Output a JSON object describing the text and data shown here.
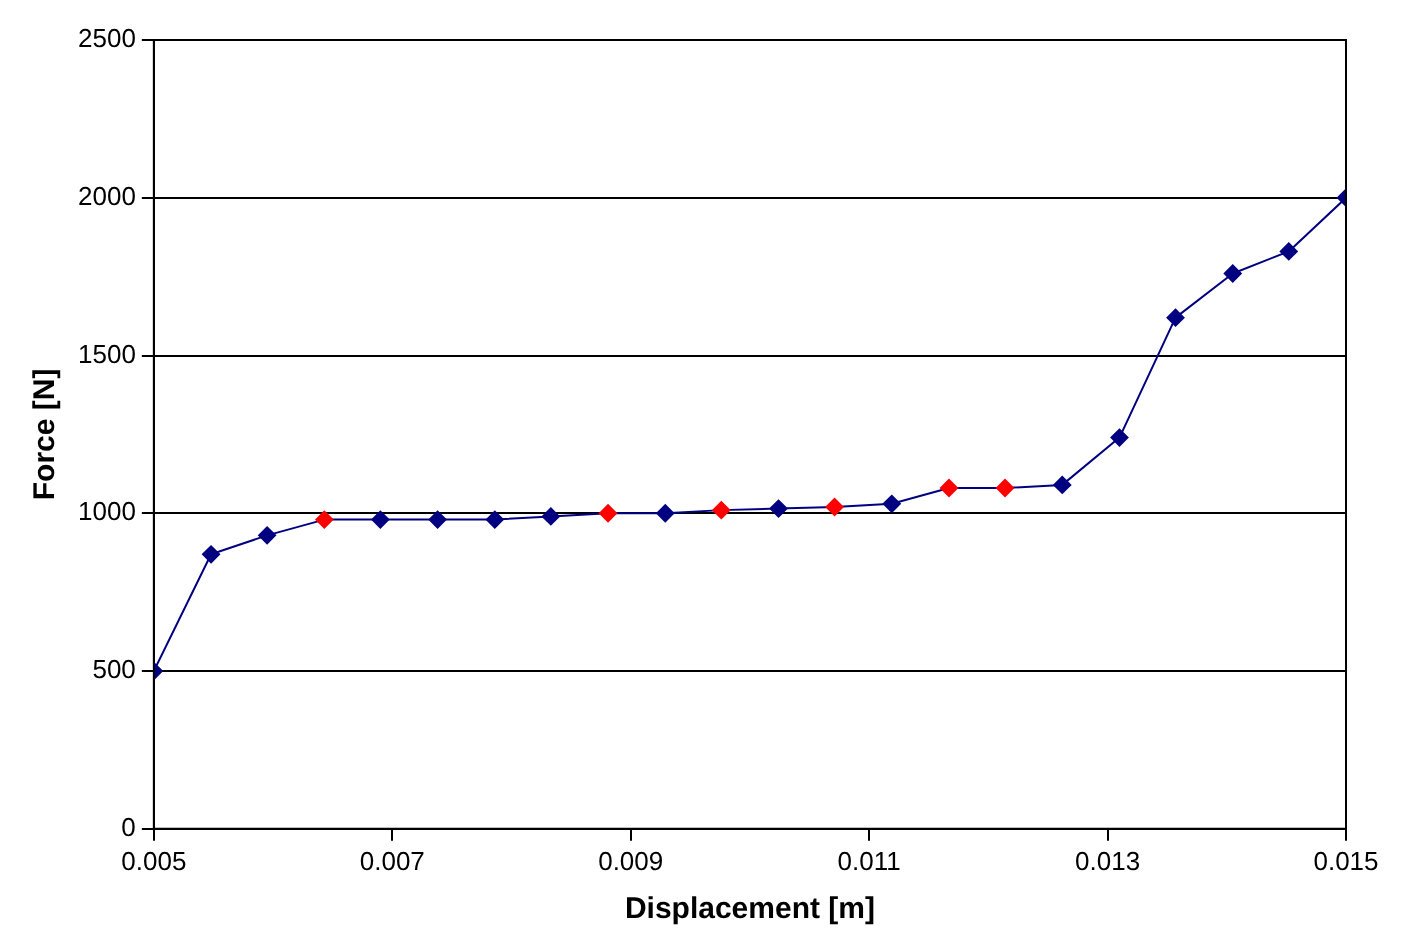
{
  "chart_data": {
    "type": "line",
    "xlabel": "Displacement [m]",
    "ylabel": "Force [N]",
    "x": [
      0.005,
      0.00548,
      0.00595,
      0.00643,
      0.0069,
      0.00738,
      0.00786,
      0.00833,
      0.00881,
      0.00929,
      0.00976,
      0.01024,
      0.01071,
      0.01119,
      0.01167,
      0.01214,
      0.01262,
      0.0131,
      0.01357,
      0.01405,
      0.01452,
      0.015
    ],
    "series": [
      {
        "color": "#000080",
        "values": [
          500,
          870,
          930,
          980,
          980,
          980,
          980,
          990,
          1000,
          1000,
          1010,
          1015,
          1020,
          1030,
          1080,
          1080,
          1090,
          1240,
          1620,
          1760,
          1830,
          2000
        ],
        "colors": [
          "#000080",
          "#000080",
          "#000080",
          "#ff0000",
          "#000080",
          "#000080",
          "#000080",
          "#000080",
          "#ff0000",
          "#000080",
          "#ff0000",
          "#000080",
          "#ff0000",
          "#000080",
          "#ff0000",
          "#ff0000",
          "#000080",
          "#000080",
          "#000080",
          "#000080",
          "#000080",
          "#000080"
        ]
      }
    ],
    "xlim": [
      0.005,
      0.015
    ],
    "xticks": [
      0.005,
      0.007,
      0.009,
      0.011,
      0.013,
      0.015
    ],
    "ylim": [
      0,
      2500
    ],
    "yticks": [
      0,
      500,
      1000,
      1500,
      2000,
      2500
    ],
    "grid": "y",
    "legend": false,
    "marker": "diamond",
    "line_style": "solid"
  }
}
